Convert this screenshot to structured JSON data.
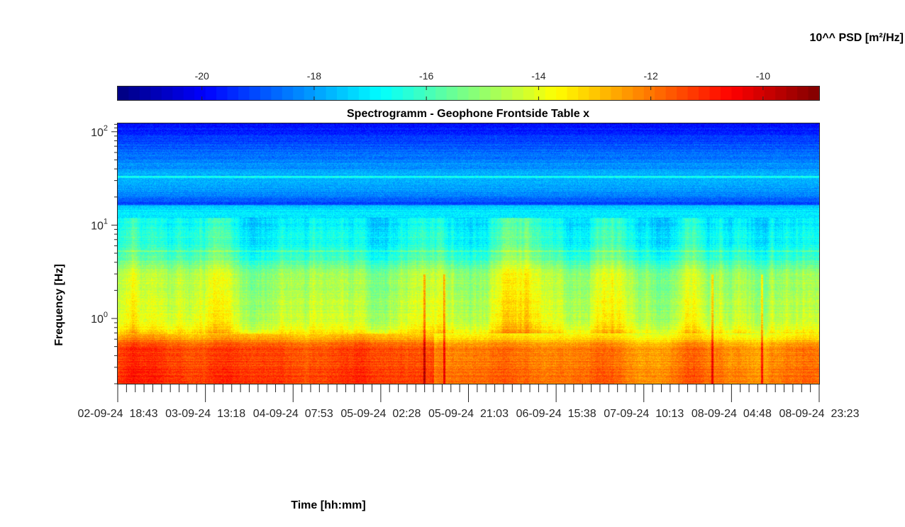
{
  "chart_data": {
    "type": "heatmap",
    "title": "Spectrogramm - Geophone Frontside Table x",
    "xlabel": "Time [hh:mm]",
    "ylabel": "Frequency [Hz]",
    "colorbar": {
      "label": "10^^ PSD [m²/Hz]",
      "range": [
        -21.5,
        -9
      ],
      "ticks": [
        -20,
        -18,
        -16,
        -14,
        -12,
        -10
      ],
      "tick_labels": [
        "-20",
        "-18",
        "-16",
        "-14",
        "-12",
        "-10"
      ],
      "colormap": "jet",
      "position": "top"
    },
    "y_axis": {
      "scale": "log",
      "range_hz": [
        0.2,
        125
      ],
      "ticks": [
        {
          "base": "10",
          "exp": "2",
          "value": 100
        },
        {
          "base": "10",
          "exp": "1",
          "value": 10
        },
        {
          "base": "10",
          "exp": "0",
          "value": 1
        }
      ]
    },
    "x_axis": {
      "tick_labels": [
        "02-09-24  18:43",
        "03-09-24  13:18",
        "04-09-24  07:53",
        "05-09-24  02:28",
        "05-09-24  21:03",
        "06-09-24  15:38",
        "07-09-24  10:13",
        "08-09-24  04:48",
        "08-09-24  23:23"
      ]
    },
    "psd_profile_log10": [
      {
        "freq_hz": 0.2,
        "psd": -11.5
      },
      {
        "freq_hz": 0.5,
        "psd": -11.8
      },
      {
        "freq_hz": 0.7,
        "psd": -13.5
      },
      {
        "freq_hz": 1.0,
        "psd": -14.3
      },
      {
        "freq_hz": 3.0,
        "psd": -14.8
      },
      {
        "freq_hz": 5.0,
        "psd": -16.4
      },
      {
        "freq_hz": 10.0,
        "psd": -16.8
      },
      {
        "freq_hz": 16.0,
        "psd": -17.3
      },
      {
        "freq_hz": 17.0,
        "psd": -19.0
      },
      {
        "freq_hz": 30.0,
        "psd": -17.6
      },
      {
        "freq_hz": 60.0,
        "psd": -18.7
      },
      {
        "freq_hz": 125.0,
        "psd": -19.8
      }
    ],
    "grid": false
  }
}
